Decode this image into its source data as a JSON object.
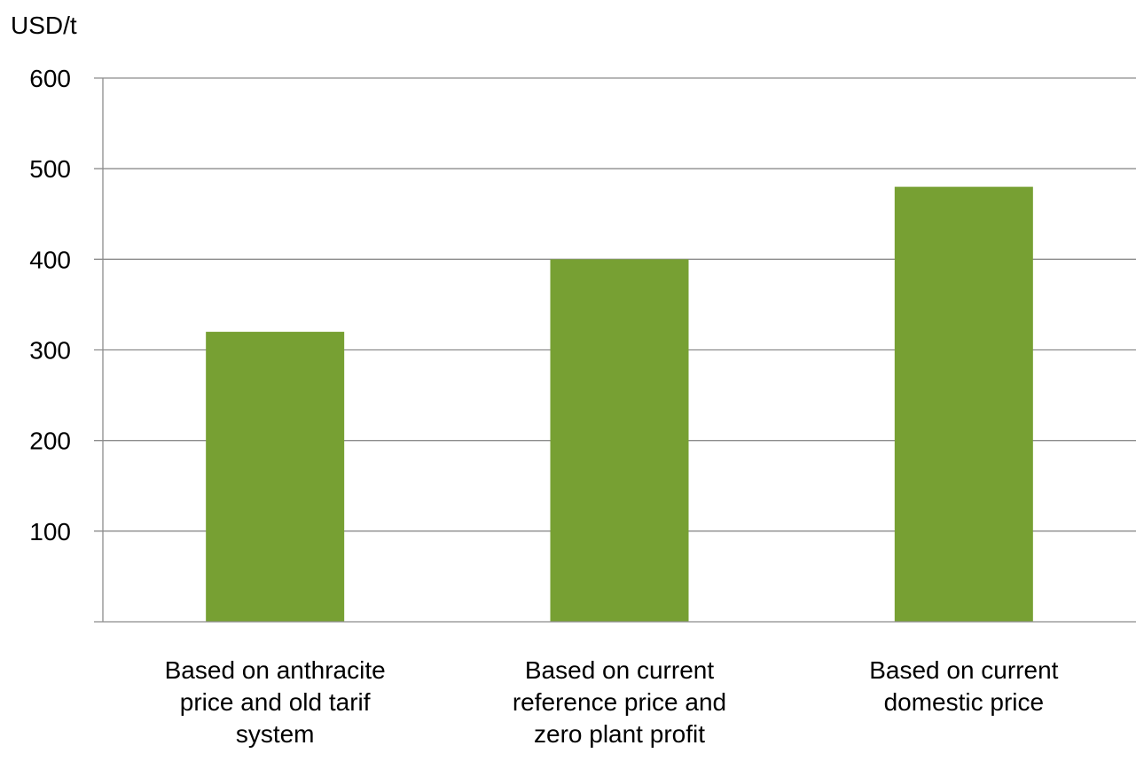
{
  "chart_data": {
    "type": "bar",
    "ylabel": "USD/t",
    "xlabel": "",
    "title": "",
    "ylim": [
      0,
      600
    ],
    "yticks": [
      100,
      200,
      300,
      400,
      500,
      600
    ],
    "grid": true,
    "legend": "none",
    "categories": [
      [
        "Based on anthracite",
        "price and old tarif",
        "system"
      ],
      [
        "Based on current",
        "reference price and",
        "zero plant profit"
      ],
      [
        "Based on current",
        "domestic price"
      ]
    ],
    "values": [
      320,
      400,
      480
    ],
    "colors": {
      "bar": "#77A033",
      "grid": "#8C8C8C",
      "axis": "#8C8C8C"
    }
  }
}
